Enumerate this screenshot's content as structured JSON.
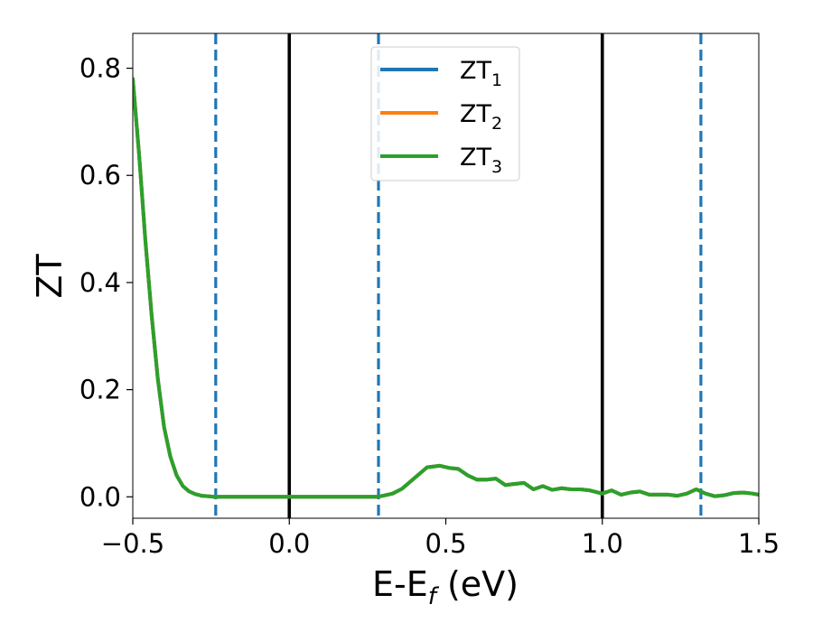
{
  "chart_data": {
    "type": "line",
    "xlabel_base": "E-E",
    "xlabel_sub": "f",
    "xlabel_unit": " (eV)",
    "ylabel": "ZT",
    "xlim": [
      -0.5,
      1.5
    ],
    "ylim": [
      -0.04,
      0.865
    ],
    "x_ticks": [
      -0.5,
      0.0,
      0.5,
      1.0,
      1.5
    ],
    "x_tick_labels": [
      "−0.5",
      "0.0",
      "0.5",
      "1.0",
      "1.5"
    ],
    "y_ticks": [
      0.0,
      0.2,
      0.4,
      0.6,
      0.8
    ],
    "y_tick_labels": [
      "0.0",
      "0.2",
      "0.4",
      "0.6",
      "0.8"
    ],
    "grid": false,
    "legend_position": "top-center",
    "series": [
      {
        "name": "ZT",
        "subscript": "1",
        "color": "#1f77b4",
        "x": [
          -0.5,
          -0.48,
          -0.46,
          -0.44,
          -0.42,
          -0.4,
          -0.38,
          -0.36,
          -0.34,
          -0.32,
          -0.3,
          -0.28,
          -0.26,
          -0.24,
          -0.2,
          -0.1,
          0.0,
          0.1,
          0.2,
          0.25,
          0.28,
          0.3,
          0.33,
          0.36,
          0.4,
          0.44,
          0.48,
          0.51,
          0.54,
          0.57,
          0.6,
          0.63,
          0.66,
          0.69,
          0.72,
          0.75,
          0.78,
          0.81,
          0.84,
          0.87,
          0.9,
          0.93,
          0.96,
          1.0,
          1.03,
          1.06,
          1.09,
          1.12,
          1.15,
          1.18,
          1.21,
          1.24,
          1.27,
          1.3,
          1.33,
          1.36,
          1.39,
          1.42,
          1.45,
          1.48,
          1.5
        ],
        "y": [
          0.78,
          0.64,
          0.48,
          0.34,
          0.22,
          0.13,
          0.075,
          0.04,
          0.02,
          0.01,
          0.005,
          0.002,
          0.001,
          0.0,
          0.0,
          0.0,
          0.0,
          0.0,
          0.0,
          0.0,
          0.0,
          0.002,
          0.006,
          0.015,
          0.035,
          0.055,
          0.058,
          0.054,
          0.052,
          0.04,
          0.032,
          0.032,
          0.034,
          0.022,
          0.024,
          0.026,
          0.014,
          0.02,
          0.013,
          0.016,
          0.014,
          0.014,
          0.012,
          0.006,
          0.012,
          0.004,
          0.008,
          0.01,
          0.004,
          0.004,
          0.004,
          0.002,
          0.006,
          0.014,
          0.006,
          0.001,
          0.003,
          0.007,
          0.008,
          0.006,
          0.004
        ]
      },
      {
        "name": "ZT",
        "subscript": "2",
        "color": "#ff7f0e",
        "x": [
          -0.5,
          -0.48,
          -0.46,
          -0.44,
          -0.42,
          -0.4,
          -0.38,
          -0.36,
          -0.34,
          -0.32,
          -0.3,
          -0.28,
          -0.26,
          -0.24,
          -0.2,
          -0.1,
          0.0,
          0.1,
          0.2,
          0.25,
          0.28,
          0.3,
          0.33,
          0.36,
          0.4,
          0.44,
          0.48,
          0.51,
          0.54,
          0.57,
          0.6,
          0.63,
          0.66,
          0.69,
          0.72,
          0.75,
          0.78,
          0.81,
          0.84,
          0.87,
          0.9,
          0.93,
          0.96,
          1.0,
          1.03,
          1.06,
          1.09,
          1.12,
          1.15,
          1.18,
          1.21,
          1.24,
          1.27,
          1.3,
          1.33,
          1.36,
          1.39,
          1.42,
          1.45,
          1.48,
          1.5
        ],
        "y": [
          0.78,
          0.64,
          0.48,
          0.34,
          0.22,
          0.13,
          0.075,
          0.04,
          0.02,
          0.01,
          0.005,
          0.002,
          0.001,
          0.0,
          0.0,
          0.0,
          0.0,
          0.0,
          0.0,
          0.0,
          0.0,
          0.002,
          0.006,
          0.015,
          0.035,
          0.055,
          0.058,
          0.054,
          0.052,
          0.04,
          0.032,
          0.032,
          0.034,
          0.022,
          0.024,
          0.026,
          0.014,
          0.02,
          0.013,
          0.016,
          0.014,
          0.014,
          0.012,
          0.006,
          0.012,
          0.004,
          0.008,
          0.01,
          0.004,
          0.004,
          0.004,
          0.002,
          0.006,
          0.014,
          0.006,
          0.001,
          0.003,
          0.007,
          0.008,
          0.006,
          0.004
        ]
      },
      {
        "name": "ZT",
        "subscript": "3",
        "color": "#2ca02c",
        "x": [
          -0.5,
          -0.48,
          -0.46,
          -0.44,
          -0.42,
          -0.4,
          -0.38,
          -0.36,
          -0.34,
          -0.32,
          -0.3,
          -0.28,
          -0.26,
          -0.24,
          -0.2,
          -0.1,
          0.0,
          0.1,
          0.2,
          0.25,
          0.28,
          0.3,
          0.33,
          0.36,
          0.4,
          0.44,
          0.48,
          0.51,
          0.54,
          0.57,
          0.6,
          0.63,
          0.66,
          0.69,
          0.72,
          0.75,
          0.78,
          0.81,
          0.84,
          0.87,
          0.9,
          0.93,
          0.96,
          1.0,
          1.03,
          1.06,
          1.09,
          1.12,
          1.15,
          1.18,
          1.21,
          1.24,
          1.27,
          1.3,
          1.33,
          1.36,
          1.39,
          1.42,
          1.45,
          1.48,
          1.5
        ],
        "y": [
          0.78,
          0.64,
          0.48,
          0.34,
          0.22,
          0.13,
          0.075,
          0.04,
          0.02,
          0.01,
          0.005,
          0.002,
          0.001,
          0.0,
          0.0,
          0.0,
          0.0,
          0.0,
          0.0,
          0.0,
          0.0,
          0.002,
          0.006,
          0.015,
          0.035,
          0.055,
          0.058,
          0.054,
          0.052,
          0.04,
          0.032,
          0.032,
          0.034,
          0.022,
          0.024,
          0.026,
          0.014,
          0.02,
          0.013,
          0.016,
          0.014,
          0.014,
          0.012,
          0.006,
          0.012,
          0.004,
          0.008,
          0.01,
          0.004,
          0.004,
          0.004,
          0.002,
          0.006,
          0.014,
          0.006,
          0.001,
          0.003,
          0.007,
          0.008,
          0.006,
          0.004
        ]
      }
    ],
    "vertical_lines": [
      {
        "x": -0.235,
        "style": "dashed",
        "color": "#1f77b4"
      },
      {
        "x": 0.0,
        "style": "solid",
        "color": "#000000"
      },
      {
        "x": 0.285,
        "style": "dashed",
        "color": "#1f77b4"
      },
      {
        "x": 1.0,
        "style": "solid",
        "color": "#000000"
      },
      {
        "x": 1.315,
        "style": "dashed",
        "color": "#1f77b4"
      }
    ]
  }
}
